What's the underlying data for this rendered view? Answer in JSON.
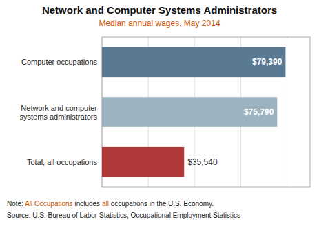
{
  "chart_data": {
    "type": "bar",
    "orientation": "horizontal",
    "title": "Network and Computer Systems Administrators",
    "subtitle": "Median annual wages, May 2014",
    "categories": [
      "Total, all occupations",
      "Network and computer\nsystems administrators",
      "Computer occupations"
    ],
    "values": [
      35540,
      75790,
      79390
    ],
    "value_labels": [
      "$35,540",
      "$75,790",
      "$79,390"
    ],
    "colors": [
      "#b03a3a",
      "#9db4c0",
      "#5a7a94"
    ],
    "data_labels": true,
    "xlim": [
      0,
      90000
    ],
    "xticks": [
      0,
      20000,
      40000,
      60000,
      80000
    ],
    "tick_labels": "y",
    "grid": true,
    "annotations": [
      {
        "parts": [
          {
            "text": "Note: ",
            "color": "#222222"
          },
          {
            "text": "All Occupations",
            "color": "#cc5500"
          },
          {
            "text": " includes ",
            "color": "#222222"
          },
          {
            "text": "all",
            "color": "#cc5500"
          },
          {
            "text": " occupations in the U.S. Economy.",
            "color": "#222222"
          }
        ]
      },
      {
        "parts": [
          {
            "text": "Source: U.S. Bureau of Labor Statistics, Occupational Employment Statistics",
            "color": "#222222"
          }
        ]
      }
    ]
  }
}
